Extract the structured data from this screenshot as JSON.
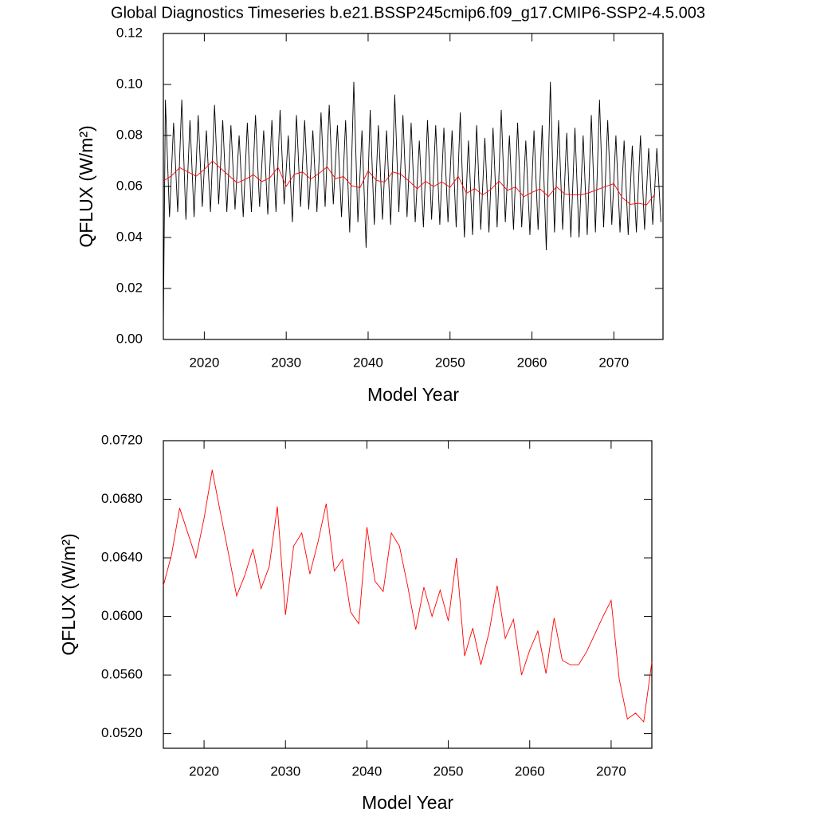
{
  "title": "Global Diagnostics Timeseries b.e21.BSSP245cmip6.f09_g17.CMIP6-SSP2-4.5.003",
  "chart_data": [
    {
      "type": "line",
      "x_label": "Model Year",
      "y_label": "QFLUX (W/m²)",
      "xlim": [
        2015,
        2076
      ],
      "xticks": [
        2020,
        2030,
        2040,
        2050,
        2060,
        2070
      ],
      "ylim": [
        0,
        0.12
      ],
      "yticks": [
        {
          "value": 0,
          "label": "0.00"
        },
        {
          "value": 0.02,
          "label": "0.02"
        },
        {
          "value": 0.04,
          "label": "0.04"
        },
        {
          "value": 0.06,
          "label": "0.06"
        },
        {
          "value": 0.08,
          "label": "0.08"
        },
        {
          "value": 0.1,
          "label": "0.10"
        },
        {
          "value": 0.12,
          "label": "0.12"
        }
      ],
      "series": [
        {
          "color": "#000000",
          "x": [
            2015,
            2015.25,
            2015.75,
            2016.25,
            2016.75,
            2017.25,
            2017.75,
            2018.25,
            2018.75,
            2019.25,
            2019.75,
            2020.25,
            2020.75,
            2021.25,
            2021.75,
            2022.25,
            2022.75,
            2023.25,
            2023.75,
            2024.25,
            2024.75,
            2025.25,
            2025.75,
            2026.25,
            2026.75,
            2027.25,
            2027.75,
            2028.25,
            2028.75,
            2029.25,
            2029.75,
            2030.25,
            2030.75,
            2031.25,
            2031.75,
            2032.25,
            2032.75,
            2033.25,
            2033.75,
            2034.25,
            2034.75,
            2035.25,
            2035.75,
            2036.25,
            2036.75,
            2037.25,
            2037.75,
            2038.25,
            2038.75,
            2039.25,
            2039.75,
            2040.25,
            2040.75,
            2041.25,
            2041.75,
            2042.25,
            2042.75,
            2043.25,
            2043.75,
            2044.25,
            2044.75,
            2045.25,
            2045.75,
            2046.25,
            2046.75,
            2047.25,
            2047.75,
            2048.25,
            2048.75,
            2049.25,
            2049.75,
            2050.25,
            2050.75,
            2051.25,
            2051.75,
            2052.25,
            2052.75,
            2053.25,
            2053.75,
            2054.25,
            2054.75,
            2055.25,
            2055.75,
            2056.25,
            2056.75,
            2057.25,
            2057.75,
            2058.25,
            2058.75,
            2059.25,
            2059.75,
            2060.25,
            2060.75,
            2061.25,
            2061.75,
            2062.25,
            2062.75,
            2063.25,
            2063.75,
            2064.25,
            2064.75,
            2065.25,
            2065.75,
            2066.25,
            2066.75,
            2067.25,
            2067.75,
            2068.25,
            2068.75,
            2069.25,
            2069.75,
            2070.25,
            2070.75,
            2071.25,
            2071.75,
            2072.25,
            2072.75,
            2073.25,
            2073.75,
            2074.25,
            2074.75,
            2075.25,
            2075.75
          ],
          "values": [
            0.005,
            0.094,
            0.048,
            0.085,
            0.05,
            0.094,
            0.047,
            0.086,
            0.048,
            0.088,
            0.052,
            0.082,
            0.05,
            0.092,
            0.053,
            0.086,
            0.05,
            0.084,
            0.051,
            0.08,
            0.048,
            0.085,
            0.05,
            0.088,
            0.052,
            0.082,
            0.049,
            0.086,
            0.05,
            0.09,
            0.053,
            0.08,
            0.046,
            0.088,
            0.052,
            0.086,
            0.051,
            0.082,
            0.05,
            0.089,
            0.052,
            0.092,
            0.053,
            0.084,
            0.048,
            0.086,
            0.042,
            0.101,
            0.046,
            0.082,
            0.036,
            0.09,
            0.045,
            0.084,
            0.047,
            0.082,
            0.045,
            0.096,
            0.05,
            0.088,
            0.048,
            0.085,
            0.046,
            0.078,
            0.044,
            0.086,
            0.047,
            0.084,
            0.045,
            0.083,
            0.046,
            0.082,
            0.044,
            0.089,
            0.04,
            0.078,
            0.041,
            0.084,
            0.043,
            0.079,
            0.042,
            0.083,
            0.044,
            0.09,
            0.046,
            0.08,
            0.043,
            0.085,
            0.044,
            0.078,
            0.041,
            0.082,
            0.043,
            0.084,
            0.035,
            0.101,
            0.042,
            0.086,
            0.043,
            0.081,
            0.04,
            0.083,
            0.04,
            0.08,
            0.041,
            0.088,
            0.042,
            0.094,
            0.044,
            0.086,
            0.045,
            0.08,
            0.042,
            0.078,
            0.041,
            0.076,
            0.042,
            0.08,
            0.043,
            0.075,
            0.045,
            0.075,
            0.046
          ]
        },
        {
          "color": "#ff0000",
          "x": [
            2015,
            2016,
            2017,
            2018,
            2019,
            2020,
            2021,
            2022,
            2023,
            2024,
            2025,
            2026,
            2027,
            2028,
            2029,
            2030,
            2031,
            2032,
            2033,
            2034,
            2035,
            2036,
            2037,
            2038,
            2039,
            2040,
            2041,
            2042,
            2043,
            2044,
            2045,
            2046,
            2047,
            2048,
            2049,
            2050,
            2051,
            2052,
            2053,
            2054,
            2055,
            2056,
            2057,
            2058,
            2059,
            2060,
            2061,
            2062,
            2063,
            2064,
            2065,
            2066,
            2067,
            2068,
            2069,
            2070,
            2071,
            2072,
            2073,
            2074,
            2075
          ],
          "values": [
            0.0621,
            0.0642,
            0.0674,
            0.0657,
            0.064,
            0.0667,
            0.07,
            0.0671,
            0.0643,
            0.0614,
            0.0628,
            0.0646,
            0.0619,
            0.0634,
            0.0675,
            0.0601,
            0.0648,
            0.0657,
            0.0629,
            0.0651,
            0.0677,
            0.0631,
            0.0639,
            0.0603,
            0.0595,
            0.0661,
            0.0624,
            0.0617,
            0.0657,
            0.0648,
            0.0621,
            0.0591,
            0.062,
            0.06,
            0.0618,
            0.0597,
            0.064,
            0.0573,
            0.0592,
            0.0567,
            0.0589,
            0.0621,
            0.0585,
            0.0598,
            0.056,
            0.0577,
            0.059,
            0.0561,
            0.0599,
            0.057,
            0.0567,
            0.0567,
            0.0576,
            0.0588,
            0.06,
            0.0611,
            0.0557,
            0.053,
            0.0534,
            0.0528,
            0.0569
          ]
        }
      ]
    },
    {
      "type": "line",
      "x_label": "Model Year",
      "y_label": "QFLUX (W/m²)",
      "xlim": [
        2015,
        2075
      ],
      "xticks": [
        2020,
        2030,
        2040,
        2050,
        2060,
        2070
      ],
      "ylim": [
        0.051,
        0.072
      ],
      "yticks": [
        {
          "value": 0.052,
          "label": "0.0520"
        },
        {
          "value": 0.056,
          "label": "0.0560"
        },
        {
          "value": 0.06,
          "label": "0.0600"
        },
        {
          "value": 0.064,
          "label": "0.0640"
        },
        {
          "value": 0.068,
          "label": "0.0680"
        },
        {
          "value": 0.072,
          "label": "0.0720"
        }
      ],
      "series": [
        {
          "color": "#ff0000",
          "x": [
            2015,
            2016,
            2017,
            2018,
            2019,
            2020,
            2021,
            2022,
            2023,
            2024,
            2025,
            2026,
            2027,
            2028,
            2029,
            2030,
            2031,
            2032,
            2033,
            2034,
            2035,
            2036,
            2037,
            2038,
            2039,
            2040,
            2041,
            2042,
            2043,
            2044,
            2045,
            2046,
            2047,
            2048,
            2049,
            2050,
            2051,
            2052,
            2053,
            2054,
            2055,
            2056,
            2057,
            2058,
            2059,
            2060,
            2061,
            2062,
            2063,
            2064,
            2065,
            2066,
            2067,
            2068,
            2069,
            2070,
            2071,
            2072,
            2073,
            2074,
            2075
          ],
          "values": [
            0.0621,
            0.0642,
            0.0674,
            0.0657,
            0.064,
            0.0667,
            0.07,
            0.0671,
            0.0643,
            0.0614,
            0.0628,
            0.0646,
            0.0619,
            0.0634,
            0.0675,
            0.0601,
            0.0648,
            0.0657,
            0.0629,
            0.0651,
            0.0677,
            0.0631,
            0.0639,
            0.0603,
            0.0595,
            0.0661,
            0.0624,
            0.0617,
            0.0657,
            0.0648,
            0.0621,
            0.0591,
            0.062,
            0.06,
            0.0618,
            0.0597,
            0.064,
            0.0573,
            0.0592,
            0.0567,
            0.0589,
            0.0621,
            0.0585,
            0.0598,
            0.056,
            0.0577,
            0.059,
            0.0561,
            0.0599,
            0.057,
            0.0567,
            0.0567,
            0.0576,
            0.0588,
            0.06,
            0.0611,
            0.0557,
            0.053,
            0.0534,
            0.0528,
            0.0569
          ]
        }
      ]
    }
  ]
}
